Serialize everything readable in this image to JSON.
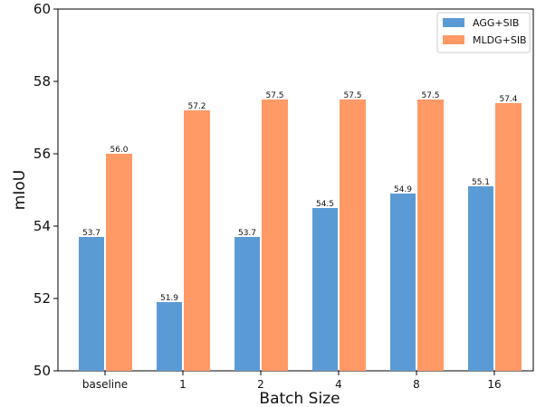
{
  "chart_data": {
    "type": "bar",
    "title": "",
    "xlabel": "Batch Size",
    "ylabel": "mIoU",
    "ylim": [
      50,
      60
    ],
    "yticks": [
      50,
      52,
      54,
      56,
      58,
      60
    ],
    "categories": [
      "baseline",
      "1",
      "2",
      "4",
      "8",
      "16"
    ],
    "series": [
      {
        "name": "AGG+SIB",
        "color": "#5B9BD5",
        "values": [
          53.7,
          51.9,
          53.7,
          54.5,
          54.9,
          55.1
        ],
        "labels": [
          "53.7",
          "51.9",
          "53.7",
          "54.5",
          "54.9",
          "55.1"
        ]
      },
      {
        "name": "MLDG+SIB",
        "color": "#FF9966",
        "values": [
          56.0,
          57.2,
          57.5,
          57.5,
          57.5,
          57.4
        ],
        "labels": [
          "56.0",
          "57.2",
          "57.5",
          "57.5",
          "57.5",
          "57.4"
        ]
      }
    ],
    "legend_position": "top-right",
    "grid": false
  }
}
